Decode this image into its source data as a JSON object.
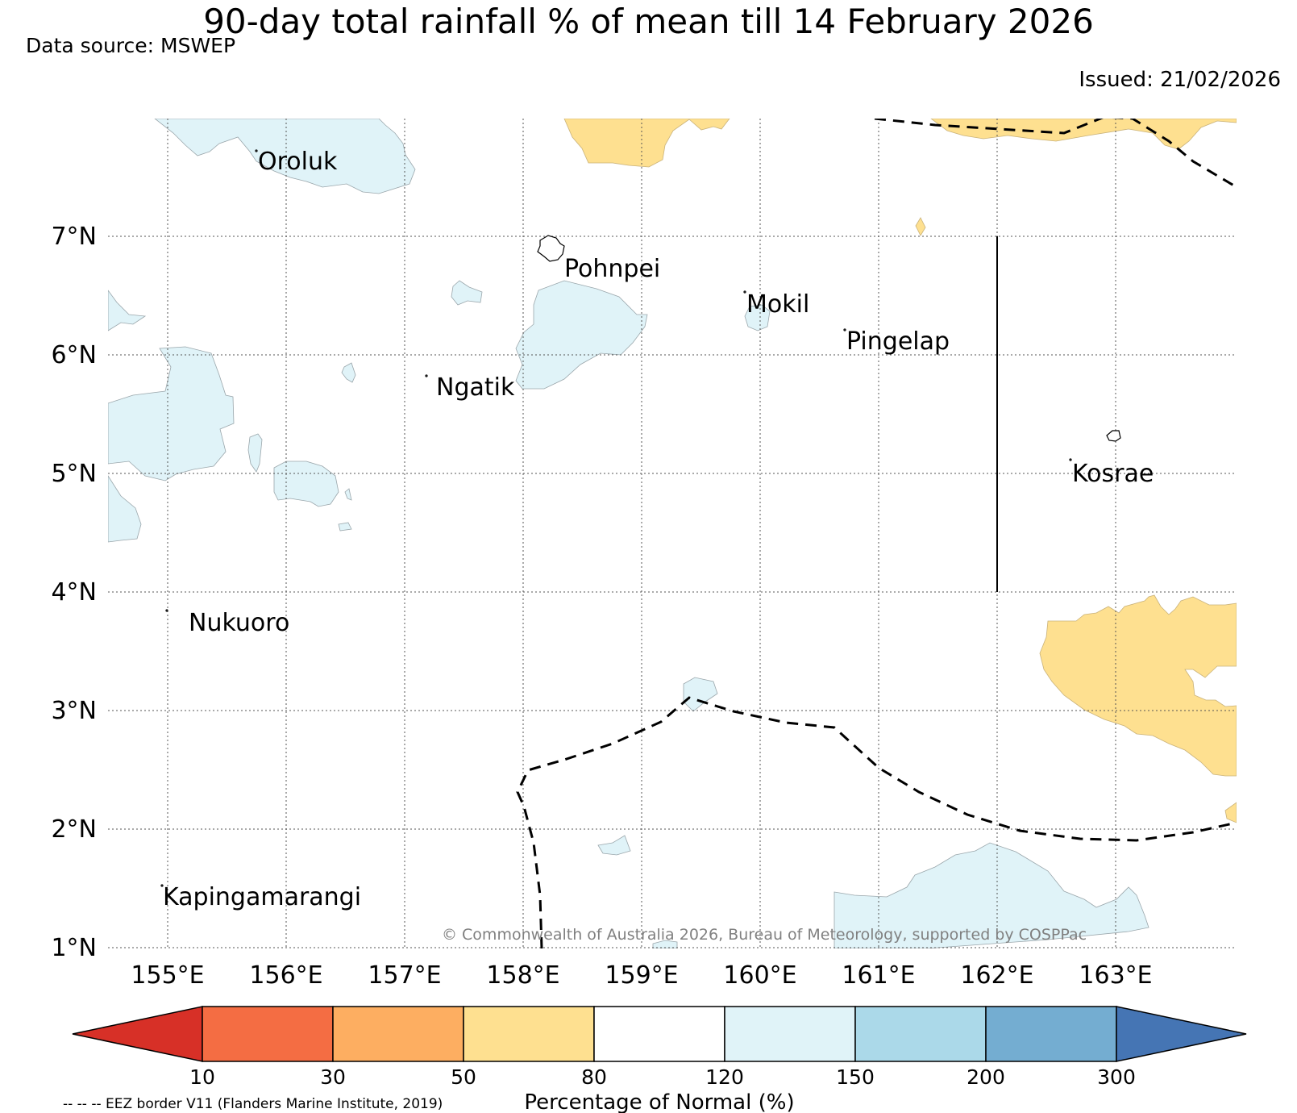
{
  "title": "90-day total rainfall % of mean till 14 February 2026",
  "data_source": "Data source: MSWEP",
  "issued": "Issued: 21/02/2026",
  "map": {
    "lat_labels": [
      "7°N",
      "6°N",
      "5°N",
      "4°N",
      "3°N",
      "2°N",
      "1°N"
    ],
    "lon_labels": [
      "155°E",
      "156°E",
      "157°E",
      "158°E",
      "159°E",
      "160°E",
      "161°E",
      "162°E",
      "163°E"
    ],
    "places": [
      "Oroluk",
      "Pohnpei",
      "Mokil",
      "Pingelap",
      "Ngatik",
      "Kosrae",
      "Nukuoro",
      "Kapingamarangi"
    ],
    "copyright": "© Commonwealth of Australia 2026, Bureau of Meteorology, supported by COSPPac",
    "colors": {
      "wet": "#e0f3f8",
      "dry": "#fee090",
      "border": "#000000"
    }
  },
  "colorbar": {
    "title": "Percentage of Normal (%)",
    "ticks": [
      "10",
      "30",
      "50",
      "80",
      "120",
      "150",
      "200",
      "300"
    ],
    "colors": [
      "#d73027",
      "#f46d43",
      "#fdae61",
      "#fee090",
      "#ffffff",
      "#e0f3f8",
      "#abd9e9",
      "#74add1",
      "#4575b4"
    ]
  },
  "eez_note": "-- -- -- EEZ border V11 (Flanders Marine Institute, 2019)"
}
